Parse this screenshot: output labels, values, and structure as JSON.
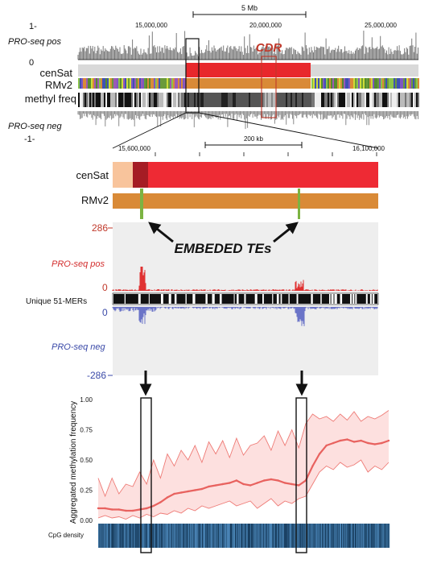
{
  "top_panel": {
    "ruler_label": "5 Mb",
    "tick_labels": [
      "15,000,000",
      "20,000,000",
      "25,000,000"
    ],
    "track_labels": {
      "pro_pos": "PRO-seq pos",
      "censat": "cenSat",
      "rmv2": "RMv2",
      "methyl": "methyl freq",
      "pro_neg": "PRO-seq neg"
    },
    "scale_labels": {
      "pos_top": "1-",
      "zero": "0",
      "neg_bottom": "-1-"
    },
    "cdr_label": "CDR",
    "colors": {
      "censat_red": "#e8282c",
      "rmv2_orange": "#d98a37",
      "cdr_box": "#c0392b",
      "methyl_gray": "#555555"
    }
  },
  "zoom_panel": {
    "ruler_label": "200 kb",
    "tick_labels": [
      "15,600,000",
      "16,100,000"
    ],
    "track_labels": {
      "censat": "cenSat",
      "rmv2": "RMv2",
      "pro_pos": "PRO-seq pos",
      "unique": "Unique 51-MERs",
      "pro_neg": "PRO-seq neg"
    },
    "scale_labels": {
      "pos_max": "286",
      "zero_pos": "0",
      "zero_neg": "0",
      "neg_min": "-286"
    },
    "annotation": "EMBEDED TEs",
    "colors": {
      "censat_light": "#f8c49c",
      "censat_dark": "#a51c24",
      "censat_red": "#ee2a34",
      "rmv2": "#d98a37",
      "te_green": "#7cb342",
      "pos": "#e03131",
      "neg": "#6b74c8"
    }
  },
  "chart_data": {
    "type": "area",
    "title": "",
    "xlabel": "",
    "ylabel": "Aggregated methylation frequency",
    "ylim": [
      0,
      1.0
    ],
    "yticks": [
      "0.00",
      "0.25",
      "0.50",
      "0.75",
      "1.00"
    ],
    "series": [
      {
        "values": [
          0.1,
          0.1,
          0.09,
          0.09,
          0.08,
          0.08,
          0.09,
          0.1,
          0.12,
          0.15,
          0.19,
          0.22,
          0.23,
          0.24,
          0.25,
          0.26,
          0.28,
          0.29,
          0.3,
          0.31,
          0.33,
          0.3,
          0.29,
          0.31,
          0.33,
          0.34,
          0.33,
          0.31,
          0.3,
          0.29,
          0.33,
          0.45,
          0.55,
          0.62,
          0.64,
          0.66,
          0.67,
          0.65,
          0.66,
          0.64,
          0.63,
          0.64,
          0.66
        ]
      }
    ],
    "upper_band": [
      0.35,
      0.2,
      0.35,
      0.22,
      0.3,
      0.28,
      0.4,
      0.3,
      0.5,
      0.35,
      0.55,
      0.45,
      0.58,
      0.5,
      0.62,
      0.48,
      0.65,
      0.55,
      0.66,
      0.52,
      0.68,
      0.54,
      0.62,
      0.64,
      0.7,
      0.58,
      0.74,
      0.62,
      0.75,
      0.6,
      0.8,
      0.88,
      0.84,
      0.86,
      0.82,
      0.88,
      0.83,
      0.9,
      0.82,
      0.86,
      0.84,
      0.87,
      0.91
    ],
    "lower_band": [
      0.02,
      0.04,
      0.02,
      0.03,
      0.01,
      0.04,
      0.02,
      0.05,
      0.03,
      0.06,
      0.05,
      0.08,
      0.06,
      0.1,
      0.08,
      0.12,
      0.1,
      0.12,
      0.14,
      0.16,
      0.12,
      0.14,
      0.16,
      0.1,
      0.14,
      0.18,
      0.12,
      0.16,
      0.14,
      0.18,
      0.2,
      0.3,
      0.4,
      0.45,
      0.42,
      0.48,
      0.44,
      0.46,
      0.5,
      0.4,
      0.45,
      0.42,
      0.48
    ],
    "colors": {
      "line": "#e8625f",
      "band_fill": "#fde0df",
      "band_edge": "#ee7a75"
    }
  },
  "cpg": {
    "label": "CpG density",
    "colors": {
      "dark": "#163b5c",
      "light": "#4b86b8"
    }
  }
}
